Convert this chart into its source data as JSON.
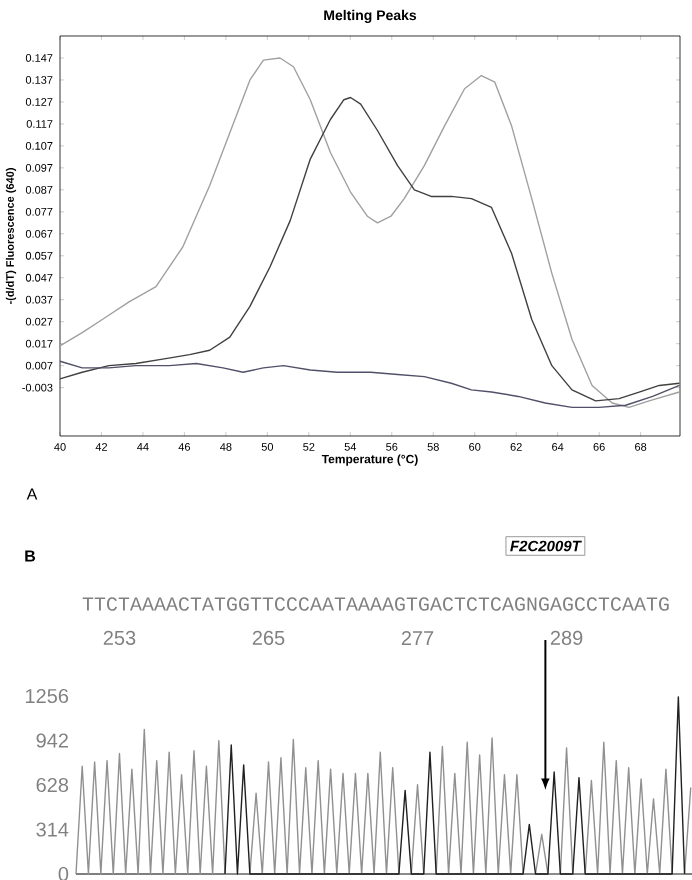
{
  "chart_data": [
    {
      "type": "line",
      "title": "Melting Peaks",
      "xlabel": "Temperature (°C)",
      "ylabel": "-(d/dT) Fluorescence (640)",
      "xlim": [
        40,
        69.9
      ],
      "xticks": [
        40,
        42,
        44,
        46,
        48,
        50,
        52,
        54,
        56,
        58,
        60,
        62,
        64,
        66,
        68
      ],
      "ylim": [
        -0.025,
        0.157
      ],
      "yticks": [
        -0.003,
        0.007,
        0.017,
        0.027,
        0.037,
        0.047,
        0.057,
        0.067,
        0.077,
        0.087,
        0.097,
        0.107,
        0.117,
        0.127,
        0.137,
        0.147
      ],
      "marker": "none",
      "line_style": "solid",
      "series": [
        {
          "color": "#a0a0a0",
          "x": [
            40,
            41.07,
            42.04,
            43.33,
            44.63,
            45.92,
            47.22,
            48.19,
            49.16,
            49.81,
            50.61,
            51.26,
            52.07,
            53.04,
            54.01,
            54.82,
            55.31,
            55.96,
            56.6,
            57.57,
            58.54,
            59.51,
            60.32,
            60.97,
            61.78,
            62.75,
            63.72,
            64.69,
            65.66,
            66.63,
            67.44,
            68.41,
            69.87
          ],
          "values": [
            0.016,
            0.022,
            0.028,
            0.036,
            0.043,
            0.061,
            0.089,
            0.113,
            0.137,
            0.146,
            0.147,
            0.143,
            0.128,
            0.104,
            0.086,
            0.075,
            0.072,
            0.075,
            0.083,
            0.098,
            0.116,
            0.133,
            0.139,
            0.136,
            0.116,
            0.083,
            0.049,
            0.019,
            -0.002,
            -0.01,
            -0.012,
            -0.009,
            -0.005
          ]
        },
        {
          "color": "#404040",
          "x": [
            40,
            41.07,
            42.36,
            43.66,
            44.95,
            46.25,
            47.22,
            48.19,
            49.16,
            50.13,
            51.1,
            52.07,
            53.04,
            53.69,
            54.01,
            54.5,
            55.31,
            56.28,
            57.09,
            57.9,
            58.87,
            59.84,
            60.81,
            61.78,
            62.75,
            63.72,
            64.69,
            65.83,
            66.96,
            67.93,
            68.9,
            69.87
          ],
          "values": [
            0.001,
            0.004,
            0.007,
            0.008,
            0.01,
            0.012,
            0.014,
            0.02,
            0.034,
            0.052,
            0.073,
            0.101,
            0.119,
            0.128,
            0.129,
            0.126,
            0.114,
            0.098,
            0.087,
            0.084,
            0.084,
            0.083,
            0.079,
            0.058,
            0.028,
            0.007,
            -0.004,
            -0.009,
            -0.008,
            -0.005,
            -0.002,
            -0.001
          ]
        },
        {
          "color": "#505068",
          "x": [
            40,
            41.07,
            42.36,
            43.66,
            45.28,
            46.57,
            47.86,
            48.83,
            49.81,
            50.78,
            52.07,
            53.37,
            54.98,
            56.28,
            57.57,
            58.87,
            59.84,
            60.81,
            62.1,
            63.4,
            64.69,
            65.99,
            67.28,
            68.58,
            69.87
          ],
          "values": [
            0.009,
            0.006,
            0.006,
            0.007,
            0.007,
            0.008,
            0.006,
            0.004,
            0.006,
            0.007,
            0.005,
            0.004,
            0.004,
            0.003,
            0.002,
            -0.001,
            -0.004,
            -0.005,
            -0.007,
            -0.01,
            -0.012,
            -0.012,
            -0.011,
            -0.007,
            -0.002
          ]
        }
      ],
      "annotations": [
        "A"
      ]
    },
    {
      "type": "line",
      "xlim": [
        249.5,
        299.1
      ],
      "xticks": [
        253,
        265,
        277,
        289
      ],
      "ylim": [
        0,
        1256
      ],
      "yticks": [
        0,
        314,
        628,
        942,
        1256
      ],
      "marker": "none",
      "line_style": "solid",
      "series": [
        {
          "color": "#909090",
          "x": [
            249.5,
            250,
            250.5,
            251,
            251.5,
            252,
            252.5,
            253,
            253.5,
            254,
            254.5,
            255,
            255.5,
            256,
            256.5,
            257,
            257.5,
            258,
            258.5,
            259,
            259.5,
            260,
            260.5,
            261,
            261.5,
            262,
            262.5,
            263,
            263.5,
            264,
            264.5,
            265,
            265.5,
            266,
            266.5,
            267,
            267.5,
            268,
            268.5,
            269,
            269.5,
            270,
            270.5,
            271,
            271.5,
            272,
            272.5,
            273,
            273.5,
            274,
            274.5,
            275,
            275.5,
            276,
            276.5,
            277,
            277.5,
            278,
            278.5,
            279,
            279.5,
            280,
            280.5,
            281,
            281.5,
            282,
            282.5,
            283,
            283.5,
            284,
            284.5,
            285,
            285.5,
            286,
            286.5,
            287,
            287.5,
            288,
            288.5,
            289,
            289.5,
            290,
            290.5,
            291,
            291.5,
            292,
            292.5,
            293,
            293.5,
            294,
            294.5,
            295,
            295.5,
            296,
            296.5,
            297,
            297.5,
            298,
            298.5,
            299
          ],
          "values": [
            0,
            760,
            0,
            790,
            0,
            800,
            0,
            850,
            0,
            740,
            0,
            1020,
            0,
            800,
            0,
            860,
            0,
            700,
            0,
            870,
            0,
            760,
            0,
            940,
            0,
            0,
            0,
            0,
            0,
            570,
            0,
            790,
            0,
            820,
            0,
            950,
            0,
            750,
            0,
            800,
            0,
            740,
            0,
            710,
            0,
            710,
            0,
            710,
            0,
            860,
            0,
            750,
            0,
            0,
            0,
            630,
            0,
            0,
            0,
            900,
            0,
            710,
            0,
            930,
            0,
            840,
            0,
            960,
            0,
            700,
            0,
            700,
            0,
            0,
            0,
            280,
            0,
            0,
            0,
            890,
            0,
            0,
            0,
            660,
            0,
            930,
            0,
            800,
            0,
            750,
            0,
            670,
            0,
            530,
            0,
            740,
            0,
            0,
            0,
            610
          ]
        },
        {
          "color": "#202020",
          "x": [
            261.5,
            262,
            262.5,
            263,
            263.5,
            275.5,
            276,
            276.5,
            277.5,
            278,
            278.5,
            285.5,
            286,
            286.5,
            287.5,
            288,
            288.5,
            289.5,
            290,
            290.5,
            297.5,
            298,
            298.5
          ],
          "values": [
            0,
            910,
            0,
            770,
            0,
            0,
            590,
            0,
            0,
            860,
            0,
            0,
            350,
            0,
            0,
            720,
            0,
            0,
            680,
            0,
            0,
            1250,
            0
          ]
        }
      ],
      "annotations": [
        "B",
        "TTCTAAAACTATGGTTCCCAATAAAAGTGACTCTCAGNGAGCCTCAATG",
        "F2C2009T"
      ]
    }
  ]
}
